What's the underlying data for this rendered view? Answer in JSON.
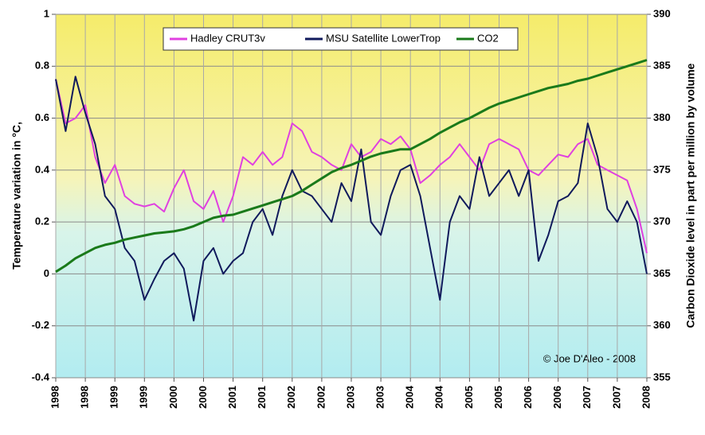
{
  "chart_data": {
    "type": "line",
    "y_label": "Temperature variation in °C,",
    "y2_label": "Carbon Dioxide level in part per million by volume",
    "annotation": "© Joe D'Aleo - 2008",
    "categories": [
      "1998",
      null,
      null,
      "1998",
      null,
      null,
      "1999",
      null,
      null,
      "1999",
      null,
      null,
      "2000",
      null,
      null,
      "2000",
      null,
      null,
      "2001",
      null,
      null,
      "2001",
      null,
      null,
      "2002",
      null,
      null,
      "2002",
      null,
      null,
      "2003",
      null,
      null,
      "2003",
      null,
      null,
      "2004",
      null,
      null,
      "2004",
      null,
      null,
      "2005",
      null,
      null,
      "2005",
      null,
      null,
      "2006",
      null,
      null,
      "2006",
      null,
      null,
      "2007",
      null,
      null,
      "2007",
      null,
      null,
      "2008"
    ],
    "series": [
      {
        "name": "Hadley CRUT3v",
        "color": "#e040e0",
        "values": [
          0.75,
          0.58,
          0.6,
          0.65,
          0.45,
          0.35,
          0.42,
          0.3,
          0.27,
          0.26,
          0.27,
          0.24,
          0.33,
          0.4,
          0.28,
          0.25,
          0.32,
          0.2,
          0.3,
          0.45,
          0.42,
          0.47,
          0.42,
          0.45,
          0.58,
          0.55,
          0.47,
          0.45,
          0.42,
          0.4,
          0.5,
          0.45,
          0.47,
          0.52,
          0.5,
          0.53,
          0.48,
          0.35,
          0.38,
          0.42,
          0.45,
          0.5,
          0.45,
          0.4,
          0.5,
          0.52,
          0.5,
          0.48,
          0.4,
          0.38,
          0.42,
          0.46,
          0.45,
          0.5,
          0.52,
          0.42,
          0.4,
          0.38,
          0.36,
          0.25,
          0.08
        ]
      },
      {
        "name": "MSU Satellite LowerTrop",
        "color": "#101a5c",
        "values": [
          0.75,
          0.55,
          0.76,
          0.62,
          0.5,
          0.3,
          0.25,
          0.1,
          0.05,
          -0.1,
          -0.02,
          0.05,
          0.08,
          0.02,
          -0.18,
          0.05,
          0.1,
          0.0,
          0.05,
          0.08,
          0.2,
          0.25,
          0.15,
          0.3,
          0.4,
          0.32,
          0.3,
          0.25,
          0.2,
          0.35,
          0.28,
          0.48,
          0.2,
          0.15,
          0.3,
          0.4,
          0.42,
          0.3,
          0.1,
          -0.1,
          0.2,
          0.3,
          0.25,
          0.45,
          0.3,
          0.35,
          0.4,
          0.3,
          0.4,
          0.05,
          0.15,
          0.28,
          0.3,
          0.35,
          0.58,
          0.45,
          0.25,
          0.2,
          0.28,
          0.2,
          0.0
        ]
      },
      {
        "name": "CO2",
        "color": "#1a7a1a",
        "axis": "y2",
        "values": [
          365.2,
          365.8,
          366.5,
          367.0,
          367.5,
          367.8,
          368.0,
          368.3,
          368.5,
          368.7,
          368.9,
          369.0,
          369.1,
          369.3,
          369.6,
          370.0,
          370.4,
          370.6,
          370.7,
          371.0,
          371.3,
          371.6,
          371.9,
          372.2,
          372.5,
          373.0,
          373.6,
          374.2,
          374.8,
          375.2,
          375.5,
          375.9,
          376.3,
          376.6,
          376.8,
          377.0,
          377.0,
          377.5,
          378.0,
          378.6,
          379.1,
          379.6,
          380.0,
          380.5,
          381.0,
          381.4,
          381.7,
          382.0,
          382.3,
          382.6,
          382.9,
          383.1,
          383.3,
          383.6,
          383.8,
          384.1,
          384.4,
          384.7,
          385.0,
          385.3,
          385.6
        ]
      }
    ],
    "ylim": [
      -0.4,
      1
    ],
    "yticks": [
      -0.4,
      -0.2,
      0,
      0.2,
      0.4,
      0.6,
      0.8,
      1
    ],
    "y2lim": [
      355,
      390
    ],
    "y2ticks": [
      355,
      360,
      365,
      370,
      375,
      380,
      385,
      390
    ],
    "grid": true,
    "legend": "top"
  }
}
